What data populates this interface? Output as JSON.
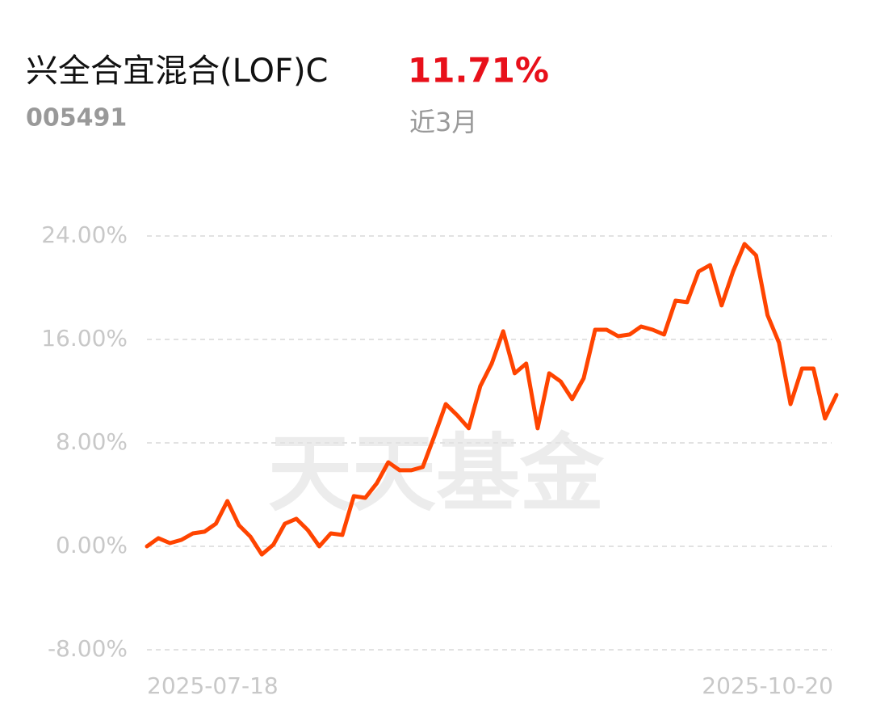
{
  "header": {
    "title": "兴全合宜混合(LOF)C",
    "code": "005491",
    "return": "11.71%",
    "period": "近3月"
  },
  "chart_data": {
    "type": "line",
    "watermark": "天天基金",
    "color": "#ff4400",
    "categories": [
      "2025-07-18",
      null,
      null,
      null,
      null,
      null,
      null,
      null,
      null,
      null,
      null,
      null,
      null,
      null,
      null,
      null,
      null,
      null,
      null,
      null,
      null,
      null,
      null,
      null,
      null,
      null,
      null,
      null,
      null,
      null,
      null,
      null,
      null,
      null,
      null,
      null,
      null,
      null,
      null,
      null,
      null,
      null,
      null,
      null,
      null,
      null,
      null,
      null,
      null,
      null,
      null,
      null,
      null,
      null,
      null,
      null,
      null,
      null,
      null,
      null,
      "2025-10-20"
    ],
    "values": [
      0,
      0.63,
      0.25,
      0.5,
      1.0,
      1.13,
      1.75,
      3.5,
      1.63,
      0.75,
      -0.63,
      0.13,
      1.75,
      2.13,
      1.25,
      0,
      1.0,
      0.88,
      3.88,
      3.75,
      4.88,
      6.5,
      5.88,
      5.88,
      6.13,
      8.5,
      11.0,
      10.13,
      9.13,
      12.38,
      14.13,
      16.63,
      13.38,
      14.13,
      9.13,
      13.38,
      12.75,
      11.38,
      13.0,
      16.75,
      16.75,
      16.25,
      16.38,
      17.0,
      16.75,
      16.38,
      19.0,
      18.88,
      21.25,
      21.75,
      18.63,
      21.25,
      23.38,
      22.5,
      17.88,
      15.75,
      11.0,
      13.75,
      13.75,
      9.88,
      11.71
    ],
    "ylim": [
      -8,
      24
    ],
    "yticks": [
      {
        "value": -8,
        "label": "-8.00%"
      },
      {
        "value": 0,
        "label": "0.00%"
      },
      {
        "value": 8,
        "label": "8.00%"
      },
      {
        "value": 16,
        "label": "16.00%"
      },
      {
        "value": 24,
        "label": "24.00%"
      }
    ],
    "grid": true
  }
}
